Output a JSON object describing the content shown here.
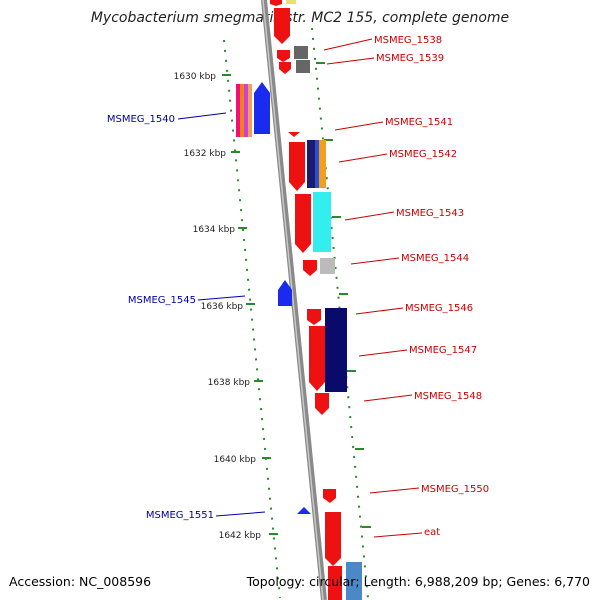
{
  "title": "Mycobacterium smegmatis str. MC2 155, complete genome",
  "footer": {
    "accession": "Accession: NC_008596",
    "summary": "Topology: circular; Length: 6,988,209 bp; Genes: 6,770"
  },
  "colors": {
    "forward_label": "#cc0000",
    "reverse_label": "#0000aa",
    "tick": "#2a8a2a",
    "backbone": "#8a8a8a"
  },
  "ticks": [
    {
      "kbp": 1630,
      "label": "1630 kbp"
    },
    {
      "kbp": 1632,
      "label": "1632 kbp"
    },
    {
      "kbp": 1634,
      "label": "1634 kbp"
    },
    {
      "kbp": 1636,
      "label": "1636 kbp"
    },
    {
      "kbp": 1638,
      "label": "1638 kbp"
    },
    {
      "kbp": 1640,
      "label": "1640 kbp"
    },
    {
      "kbp": 1642,
      "label": "1642 kbp"
    }
  ],
  "gene_labels_forward": [
    "MSMEG_1538",
    "MSMEG_1539",
    "MSMEG_1541",
    "MSMEG_1542",
    "MSMEG_1543",
    "MSMEG_1544",
    "MSMEG_1546",
    "MSMEG_1547",
    "MSMEG_1548",
    "MSMEG_1550",
    "eat"
  ],
  "gene_labels_reverse": [
    "MSMEG_1540",
    "MSMEG_1545",
    "MSMEG_1551"
  ]
}
